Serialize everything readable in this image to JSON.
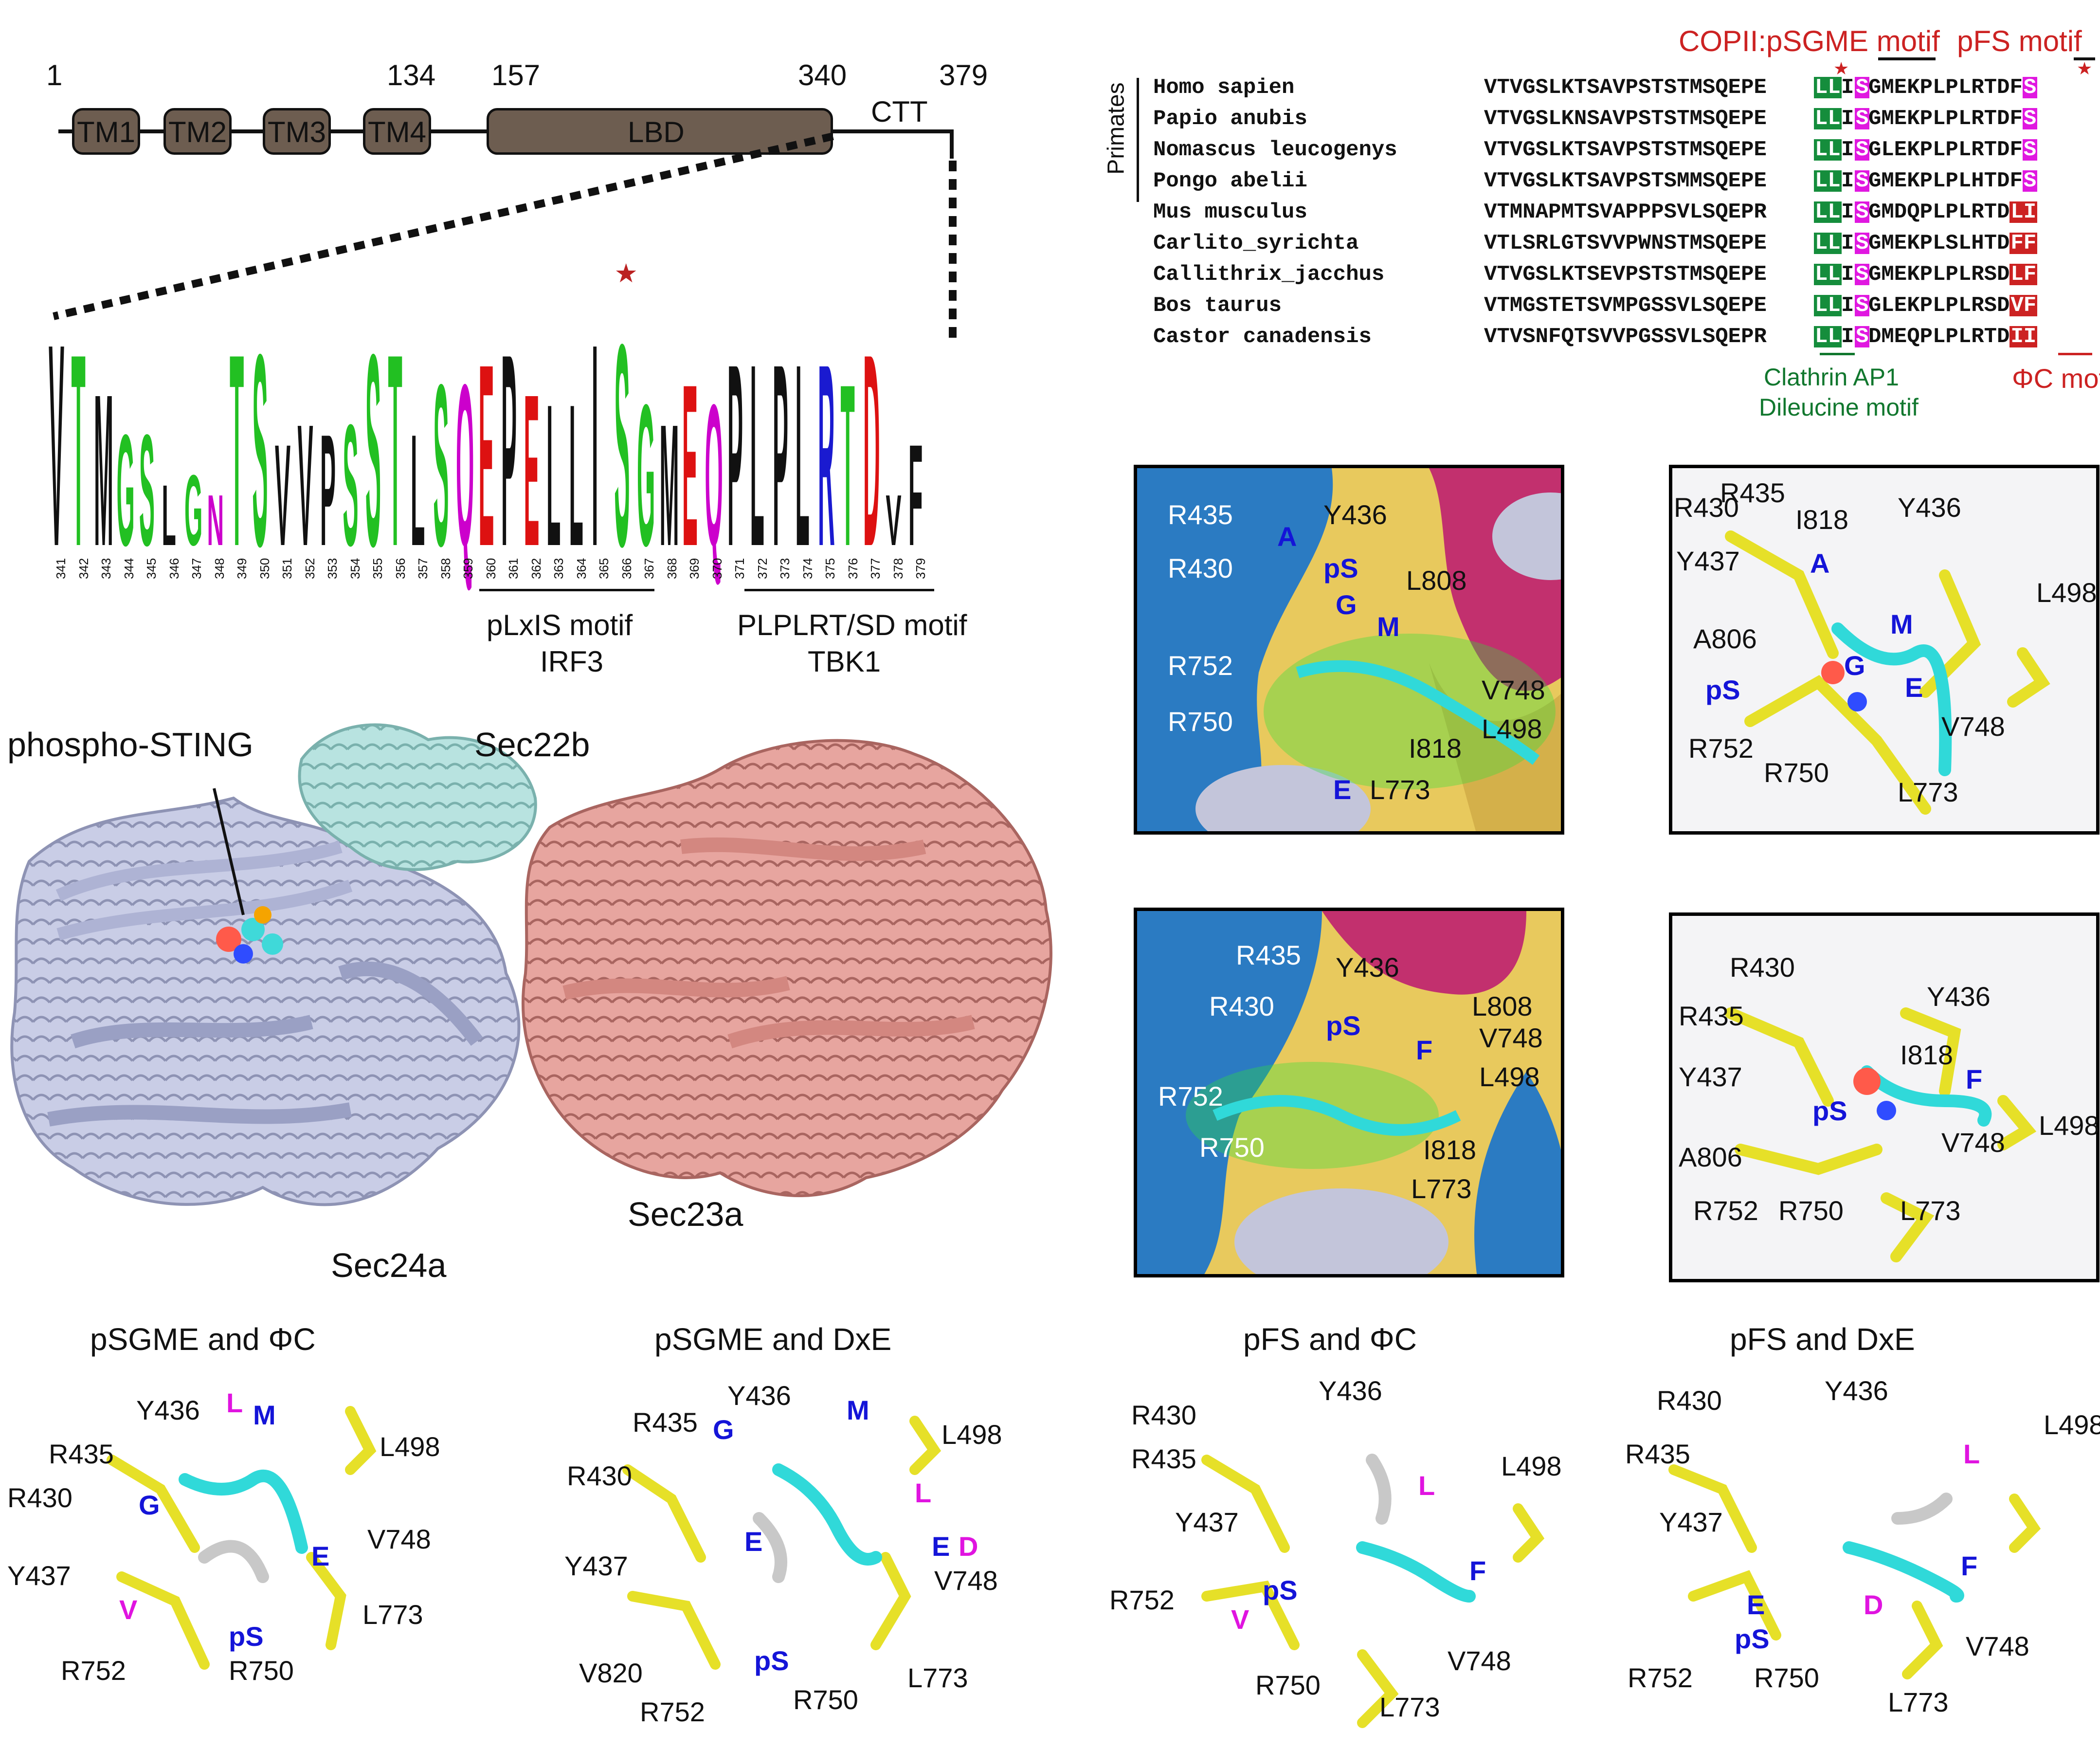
{
  "domain_map": {
    "positions": [
      "1",
      "134",
      "157",
      "340",
      "379"
    ],
    "domains": [
      "TM1",
      "TM2",
      "TM3",
      "TM4",
      "LBD"
    ],
    "tail_label": "CTT"
  },
  "logo": {
    "positions": [
      "341",
      "342",
      "343",
      "344",
      "345",
      "346",
      "347",
      "348",
      "349",
      "350",
      "351",
      "352",
      "353",
      "354",
      "355",
      "356",
      "357",
      "358",
      "359",
      "360",
      "361",
      "362",
      "363",
      "364",
      "365",
      "366",
      "367",
      "368",
      "369",
      "370",
      "371",
      "372",
      "373",
      "374",
      "375",
      "376",
      "377",
      "378",
      "379"
    ],
    "letters": [
      "V",
      "T",
      "M",
      "G",
      "S",
      "L",
      "G",
      "N",
      "T",
      "S",
      "V",
      "V",
      "P",
      "S",
      "S",
      "T",
      "L",
      "S",
      "Q",
      "E",
      "P",
      "E",
      "L",
      "L",
      "I",
      "S",
      "G",
      "M",
      "E",
      "Q",
      "P",
      "L",
      "P",
      "L",
      "R",
      "T",
      "D",
      "V",
      "F"
    ],
    "motif1_label": "pLxIS motif",
    "motif1_sub": "IRF3",
    "motif2_label": "PLPLRT/SD motif",
    "motif2_sub": "TBK1"
  },
  "structure": {
    "phospho_label": "phospho-STING",
    "sec22b": "Sec22b",
    "sec23a": "Sec23a",
    "sec24a": "Sec24a"
  },
  "alignment": {
    "header_copii": "COPII:",
    "header_motif1": "pSGME motif",
    "header_motif2": "pFS motif",
    "group_label": "Primates",
    "species": [
      "Homo sapien",
      "Papio anubis",
      "Nomascus leucogenys",
      "Pongo abelii",
      "Mus musculus",
      "Carlito_syrichta",
      "Callithrix_jacchus",
      "Bos taurus",
      "Castor canadensis"
    ],
    "seq_a": [
      "VTVGSLKTSAVPSTSTMSQEPE",
      "VTVGSLKNSAVPSTSTMSQEPE",
      "VTVGSLKTSAVPSTSTMSQEPE",
      "VTVGSLKTSAVPSTSMMSQEPE",
      "VTMNAPMTSVAPPPSVLSQEPR",
      "VTLSRLGTSVVPWNSTMSQEPE",
      "VTVGSLKTSEVPSTSTMSQEPE",
      "VTMGSTETSVMPGSSVLSQEPE",
      "VTVSNFQTSVVPGSSVLSQEPR"
    ],
    "seq_ll": [
      "LL",
      "LL",
      "LL",
      "LL",
      "LL",
      "LL",
      "LL",
      "LL",
      "LL"
    ],
    "seq_i": [
      "I",
      "I",
      "I",
      "I",
      "I",
      "I",
      "I",
      "I",
      "I"
    ],
    "seq_s": [
      "S",
      "S",
      "S",
      "S",
      "S",
      "S",
      "S",
      "S",
      "S"
    ],
    "seq_b": [
      "GMEKPLPLRTDF",
      "GMEKPLPLRTDF",
      "GLEKPLPLRTDF",
      "GMEKPLPLHTDF",
      "GMDQPLPLRTD",
      "GMEKPLSLHTD",
      "GMEKPLPLRSD",
      "GLEKPLPLRSD",
      "DMEQPLPLRTD"
    ],
    "seq_end": [
      "S",
      "S",
      "S",
      "S",
      "LI",
      "FF",
      "LF",
      "VF",
      "II"
    ],
    "footer_green1": "Clathrin AP1",
    "footer_green2": "Dileucine motif",
    "footer_red": "ΦC motif"
  },
  "panels": {
    "surf1": [
      "R435",
      "Y436",
      "A",
      "pS",
      "L808",
      "R430",
      "G",
      "M",
      "R752",
      "V748",
      "R750",
      "L498",
      "I818",
      "E",
      "L773"
    ],
    "stick1": [
      "R430",
      "R435",
      "I818",
      "Y436",
      "Y437",
      "A",
      "L498",
      "M",
      "A806",
      "G",
      "E",
      "pS",
      "V748",
      "R752",
      "R750",
      "L773"
    ],
    "surf2": [
      "R435",
      "Y436",
      "R430",
      "L808",
      "pS",
      "F",
      "V748",
      "R752",
      "L498",
      "R750",
      "I818",
      "L773"
    ],
    "stick2": [
      "R430",
      "Y436",
      "R435",
      "I818",
      "F",
      "Y437",
      "pS",
      "L498",
      "V748",
      "A806",
      "R752",
      "R750",
      "L773"
    ]
  },
  "bottom": {
    "t1": "pSGME and ΦC",
    "t2": "pSGME and DxE",
    "t3": "pFS and ΦC",
    "t4": "pFS and DxE",
    "b1": [
      "Y436",
      "L",
      "M",
      "L498",
      "R435",
      "R430",
      "G",
      "V748",
      "Y437",
      "E",
      "V",
      "L773",
      "pS",
      "R752",
      "R750"
    ],
    "b2": [
      "Y436",
      "M",
      "R435",
      "G",
      "L498",
      "R430",
      "L",
      "E",
      "E",
      "D",
      "V748",
      "Y437",
      "V820",
      "pS",
      "L773",
      "R752",
      "R750"
    ],
    "b3": [
      "Y436",
      "R430",
      "R435",
      "L",
      "L498",
      "Y437",
      "F",
      "R752",
      "V",
      "pS",
      "V748",
      "R750",
      "L773"
    ],
    "b4": [
      "Y436",
      "R430",
      "L498",
      "R435",
      "L",
      "Y437",
      "F",
      "E",
      "D",
      "pS",
      "V748",
      "R752",
      "R750",
      "L773"
    ]
  }
}
